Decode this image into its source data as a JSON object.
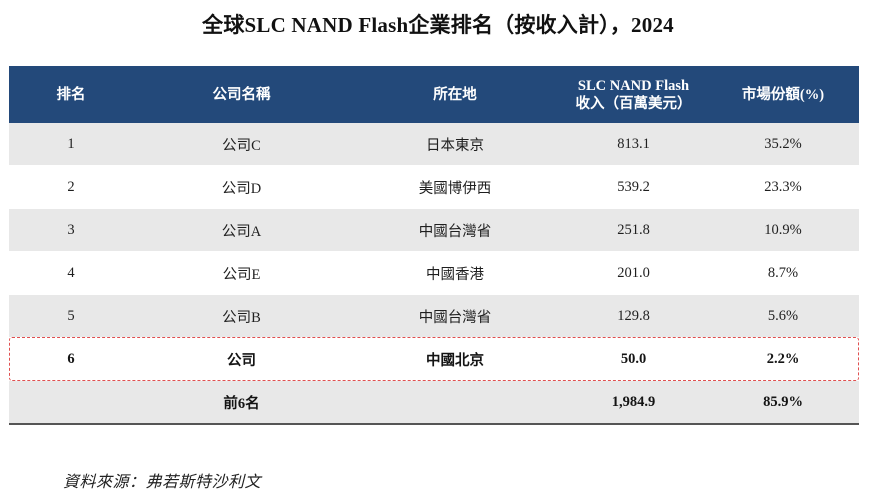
{
  "title": "全球SLC NAND Flash企業排名（按收入計），2024",
  "table": {
    "headers": {
      "rank": "排名",
      "company": "公司名稱",
      "location": "所在地",
      "revenue_line1": "SLC NAND Flash",
      "revenue_line2": "收入（百萬美元）",
      "share": "市場份額(%)"
    },
    "rows": [
      {
        "rank": "1",
        "company": "公司C",
        "location": "日本東京",
        "revenue": "813.1",
        "share": "35.2%"
      },
      {
        "rank": "2",
        "company": "公司D",
        "location": "美國博伊西",
        "revenue": "539.2",
        "share": "23.3%"
      },
      {
        "rank": "3",
        "company": "公司A",
        "location": "中國台灣省",
        "revenue": "251.8",
        "share": "10.9%"
      },
      {
        "rank": "4",
        "company": "公司E",
        "location": "中國香港",
        "revenue": "201.0",
        "share": "8.7%"
      },
      {
        "rank": "5",
        "company": "公司B",
        "location": "中國台灣省",
        "revenue": "129.8",
        "share": "5.6%"
      },
      {
        "rank": "6",
        "company": "公司",
        "location": "中國北京",
        "revenue": "50.0",
        "share": "2.2%"
      }
    ],
    "total": {
      "label": "前6名",
      "revenue": "1,984.9",
      "share": "85.9%"
    }
  },
  "source": "資料來源：弗若斯特沙利文",
  "colors": {
    "header_bg": "#23497a",
    "band_grey": "#e8e8e8",
    "highlight_border": "#e05050"
  }
}
